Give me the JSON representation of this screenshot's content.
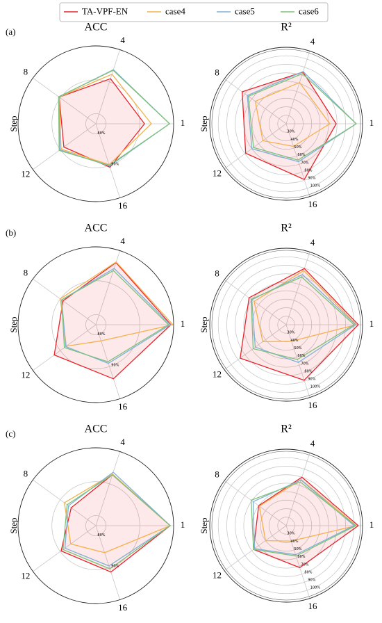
{
  "chart_data": [
    {
      "type": "radar",
      "panel_label": "(a)",
      "title": "ACC",
      "axis_label": "Step",
      "categories": [
        "1",
        "4",
        "8",
        "12",
        "16"
      ],
      "rlim": [
        77,
        100
      ],
      "rticks": [
        {
          "value": 80,
          "label": "80%"
        },
        {
          "value": 90,
          "label": "90%"
        }
      ],
      "series": [
        {
          "name": "TA-VPF-EN",
          "color": "#e8232a",
          "values": [
            91.4,
            91,
            90.4,
            88.7,
            90.5
          ]
        },
        {
          "name": "case4",
          "color": "#f5b04a",
          "values": [
            93.4,
            92.4,
            90.4,
            89.7,
            89.7
          ]
        },
        {
          "name": "case5",
          "color": "#7fb1d8",
          "values": [
            98.8,
            93.8,
            90.5,
            90.1,
            90.1
          ]
        },
        {
          "name": "case6",
          "color": "#7fc07a",
          "values": [
            98.8,
            93.6,
            90.6,
            90.4,
            89.9
          ]
        }
      ]
    },
    {
      "type": "radar",
      "title": "R²",
      "axis_label": "Step",
      "categories": [
        "1",
        "4",
        "8",
        "12",
        "16"
      ],
      "rlim": [
        20,
        110
      ],
      "rticks": [
        {
          "value": 30,
          "label": "30%"
        },
        {
          "value": 40,
          "label": "40%"
        },
        {
          "value": 50,
          "label": "50%"
        },
        {
          "value": 60,
          "label": "60%"
        },
        {
          "value": 70,
          "label": "70%"
        },
        {
          "value": 80,
          "label": "80%"
        },
        {
          "value": 90,
          "label": "90%"
        },
        {
          "value": 100,
          "label": "100%"
        }
      ],
      "series": [
        {
          "name": "TA-VPF-EN",
          "color": "#e8232a",
          "values": [
            79,
            84,
            84,
            79,
            89
          ]
        },
        {
          "name": "case4",
          "color": "#f5b04a",
          "values": [
            71.5,
            71,
            65,
            54,
            48
          ]
        },
        {
          "name": "case5",
          "color": "#7fb1d8",
          "values": [
            102.6,
            84.6,
            76.5,
            70,
            67
          ]
        },
        {
          "name": "case6",
          "color": "#7fc07a",
          "values": [
            102.6,
            82,
            75,
            67.5,
            65
          ]
        }
      ]
    },
    {
      "type": "radar",
      "panel_label": "(b)",
      "title": "ACC",
      "axis_label": "Step",
      "categories": [
        "1",
        "4",
        "8",
        "12",
        "16"
      ],
      "rlim": [
        77,
        100
      ],
      "rticks": [
        {
          "value": 80,
          "label": "80%"
        },
        {
          "value": 90,
          "label": "90%"
        }
      ],
      "series": [
        {
          "name": "TA-VPF-EN",
          "color": "#e8232a",
          "values": [
            99.2,
            96.3,
            89,
            92.2,
            93.8
          ]
        },
        {
          "name": "case4",
          "color": "#f5b04a",
          "values": [
            99.8,
            96.5,
            90,
            87.8,
            82
          ]
        },
        {
          "name": "case5",
          "color": "#7fb1d8",
          "values": [
            99,
            94.5,
            89.5,
            88,
            89
          ]
        },
        {
          "name": "case6",
          "color": "#7fc07a",
          "values": [
            98.5,
            93.8,
            89.5,
            88.5,
            88.5
          ]
        }
      ]
    },
    {
      "type": "radar",
      "title": "R²",
      "axis_label": "Step",
      "categories": [
        "1",
        "4",
        "8",
        "12",
        "16"
      ],
      "rlim": [
        20,
        110
      ],
      "rticks": [
        {
          "value": 30,
          "label": "30%"
        },
        {
          "value": 40,
          "label": "40%"
        },
        {
          "value": 50,
          "label": "50%"
        },
        {
          "value": 60,
          "label": "60%"
        },
        {
          "value": 70,
          "label": "70%"
        },
        {
          "value": 80,
          "label": "80%"
        },
        {
          "value": 90,
          "label": "90%"
        },
        {
          "value": 100,
          "label": "100%"
        }
      ],
      "series": [
        {
          "name": "TA-VPF-EN",
          "color": "#e8232a",
          "values": [
            105,
            89.5,
            74,
            87,
            88.7
          ]
        },
        {
          "name": "case4",
          "color": "#f5b04a",
          "values": [
            102.6,
            87,
            66.6,
            54,
            40.5
          ]
        },
        {
          "name": "case5",
          "color": "#7fb1d8",
          "values": [
            102,
            82,
            70,
            65,
            66.6
          ]
        },
        {
          "name": "case6",
          "color": "#7fc07a",
          "values": [
            100,
            79,
            71,
            68,
            63
          ]
        }
      ]
    },
    {
      "type": "radar",
      "panel_label": "(c)",
      "title": "ACC",
      "axis_label": "Step",
      "categories": [
        "1",
        "4",
        "8",
        "12",
        "16"
      ],
      "rlim": [
        77,
        100
      ],
      "rticks": [
        {
          "value": 80,
          "label": "80%"
        },
        {
          "value": 90,
          "label": "90%"
        }
      ],
      "series": [
        {
          "name": "TA-VPF-EN",
          "color": "#e8232a",
          "values": [
            99,
            92.8,
            86,
            89.7,
            91.4
          ]
        },
        {
          "name": "case4",
          "color": "#f5b04a",
          "values": [
            99,
            93,
            88.5,
            86.2,
            85.4
          ]
        },
        {
          "name": "case5",
          "color": "#7fb1d8",
          "values": [
            99,
            93.6,
            87,
            88.3,
            89.5
          ]
        },
        {
          "name": "case6",
          "color": "#7fc07a",
          "values": [
            99,
            92.8,
            87.5,
            89,
            90.4
          ]
        }
      ]
    },
    {
      "type": "radar",
      "title": "R²",
      "axis_label": "Step",
      "categories": [
        "1",
        "4",
        "8",
        "12",
        "16"
      ],
      "rlim": [
        20,
        110
      ],
      "rticks": [
        {
          "value": 30,
          "label": "30%"
        },
        {
          "value": 40,
          "label": "40%"
        },
        {
          "value": 50,
          "label": "50%"
        },
        {
          "value": 60,
          "label": "60%"
        },
        {
          "value": 70,
          "label": "70%"
        },
        {
          "value": 80,
          "label": "80%"
        },
        {
          "value": 90,
          "label": "90%"
        },
        {
          "value": 100,
          "label": "100%"
        }
      ],
      "series": [
        {
          "name": "TA-VPF-EN",
          "color": "#e8232a",
          "values": [
            105,
            80,
            60,
            67.5,
            72
          ]
        },
        {
          "name": "case4",
          "color": "#f5b04a",
          "values": [
            102.6,
            77,
            59,
            50,
            39
          ]
        },
        {
          "name": "case5",
          "color": "#7fb1d8",
          "values": [
            100,
            76.5,
            68,
            66,
            56
          ]
        },
        {
          "name": "case6",
          "color": "#7fc07a",
          "values": [
            102,
            74,
            71,
            67.5,
            57.6
          ]
        }
      ]
    }
  ]
}
